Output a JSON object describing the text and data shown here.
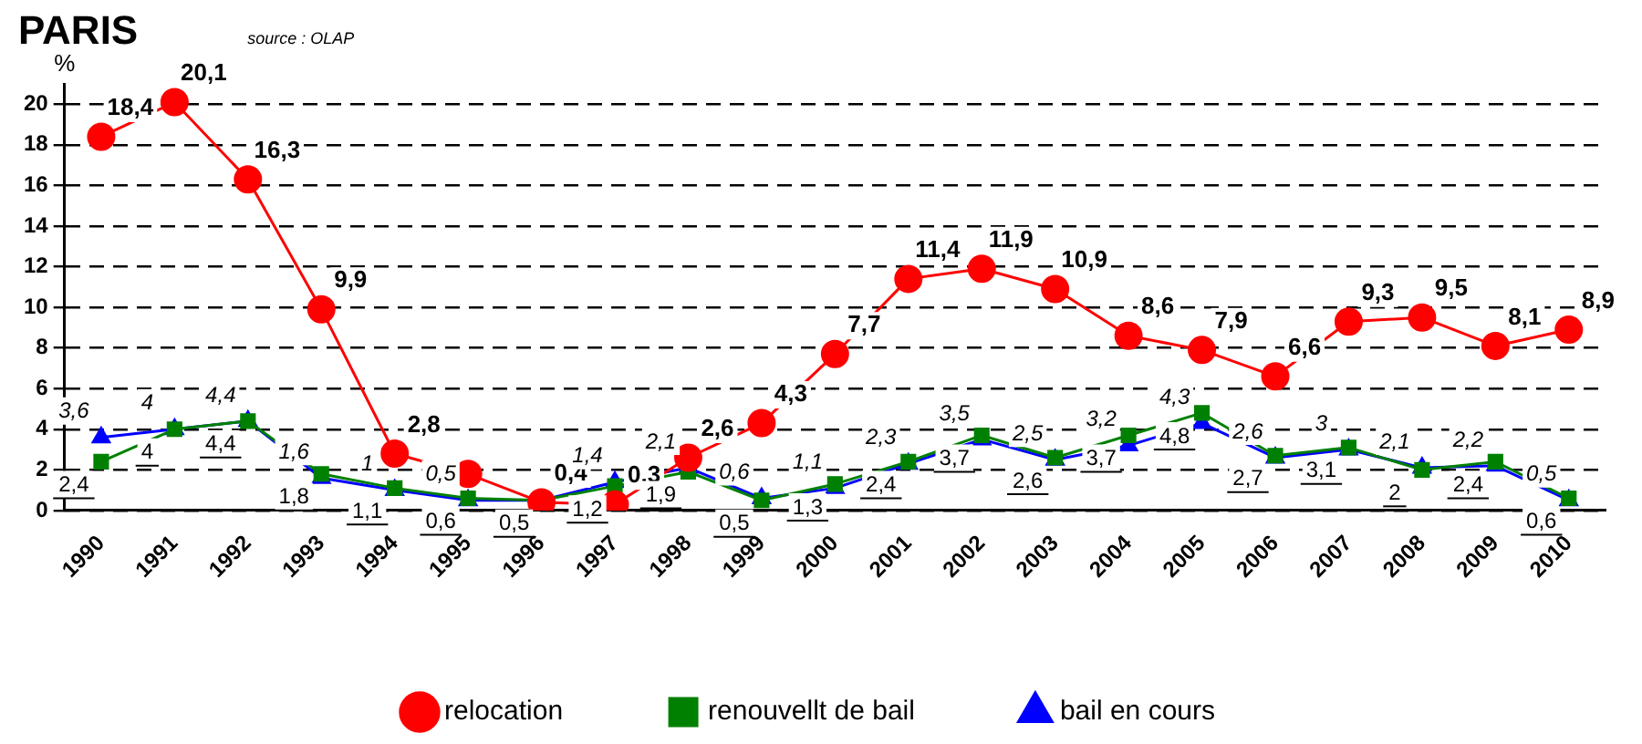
{
  "chart_data": {
    "type": "line",
    "title": "PARIS",
    "ylabel": "%",
    "annotations": [
      "source : OLAP"
    ],
    "categories": [
      "1990",
      "1991",
      "1992",
      "1993",
      "1994",
      "1995",
      "1996",
      "1997",
      "1998",
      "1999",
      "2000",
      "2001",
      "2002",
      "2003",
      "2004",
      "2005",
      "2006",
      "2007",
      "2008",
      "2009",
      "2010"
    ],
    "series": [
      {
        "name": "relocation",
        "color": "#ff0000",
        "marker": "circle",
        "values": [
          18.4,
          20.1,
          16.3,
          9.9,
          2.8,
          1.8,
          0.4,
          0.3,
          2.6,
          4.3,
          7.7,
          11.4,
          11.9,
          10.9,
          8.6,
          7.9,
          6.6,
          9.3,
          9.5,
          8.1,
          8.9
        ],
        "value_labels": [
          "18,4",
          "20,1",
          "16,3",
          "9,9",
          "2,8",
          null,
          "0,4",
          "0,3",
          "2,6",
          "4,3",
          "7,7",
          "11,4",
          "11,9",
          "10,9",
          "8,6",
          "7,9",
          "6,6",
          "9,3",
          "9,5",
          "8,1",
          "8,9"
        ]
      },
      {
        "name": "renouvellt de bail",
        "color": "#008000",
        "marker": "square",
        "values": [
          2.4,
          4,
          4.4,
          1.8,
          1.1,
          0.6,
          0.5,
          1.2,
          1.9,
          0.5,
          1.3,
          2.4,
          3.7,
          2.6,
          3.7,
          4.8,
          2.7,
          3.1,
          2,
          2.4,
          0.6
        ],
        "value_labels": [
          "2,4",
          "4",
          "4,4",
          "1,8",
          "1,1",
          "0,6",
          "0,5",
          "1,2",
          "1,9",
          "0,5",
          "1,3",
          "2,4",
          "3,7",
          "2,6",
          "3,7",
          "4,8",
          "2,7",
          "3,1",
          "2",
          "2,4",
          "0,6"
        ]
      },
      {
        "name": "bail en cours",
        "color": "#0000ff",
        "marker": "triangle",
        "values": [
          3.6,
          4,
          4.4,
          1.6,
          1,
          0.5,
          0.5,
          1.4,
          2.1,
          0.6,
          1.1,
          2.3,
          3.5,
          2.5,
          3.2,
          4.3,
          2.6,
          3,
          2.1,
          2.2,
          0.5
        ],
        "value_labels": [
          "3,6",
          "4",
          "4,4",
          "1,6",
          "1",
          "0,5",
          null,
          "1,4",
          "2,1",
          "0,6",
          "1,1",
          "2,3",
          "3,5",
          "2,5",
          "3,2",
          "4,3",
          "2,6",
          "3",
          "2,1",
          "2,2",
          "0,5"
        ]
      }
    ],
    "ylim": [
      0,
      21
    ],
    "yticks": [
      0,
      2,
      4,
      6,
      8,
      10,
      12,
      14,
      16,
      18,
      20
    ],
    "grid": "y",
    "line_style": "solid",
    "legend": "bottom"
  }
}
